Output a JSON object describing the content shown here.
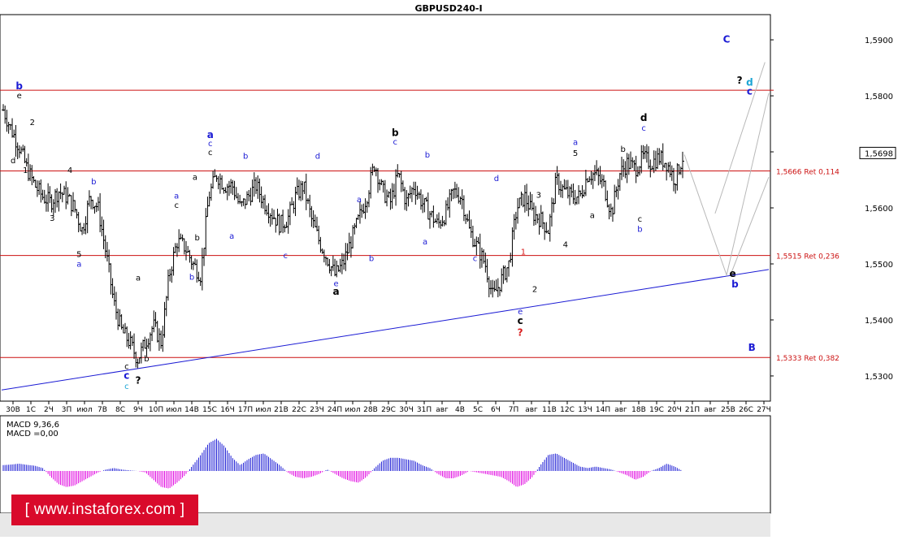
{
  "title": "GBPUSD240-I",
  "chart_data": {
    "type": "ohlc-bars",
    "symbol": "GBPUSD240-I",
    "ylim": [
      1.5255,
      1.5945
    ],
    "y_ticks": [
      "1,5900",
      "1,5800",
      "1,5700",
      "1,5600",
      "1,5500",
      "1,5400",
      "1,5300"
    ],
    "last_price": "1,5698",
    "x_ticks": [
      "30B",
      "1C",
      "2Ч",
      "3П",
      "июл",
      "7B",
      "8C",
      "9Ч",
      "10П",
      "июл",
      "14B",
      "15C",
      "16Ч",
      "17П",
      "июл",
      "21B",
      "22C",
      "23Ч",
      "24П",
      "июл",
      "28B",
      "29C",
      "30Ч",
      "31П",
      "авг",
      "4B",
      "5C",
      "6Ч",
      "7П",
      "авг",
      "11B",
      "12C",
      "13Ч",
      "14П",
      "авг",
      "18B",
      "19C",
      "20Ч",
      "21П",
      "авг",
      "25B",
      "26C",
      "27Ч"
    ],
    "price_path": [
      1.5775,
      1.574,
      1.571,
      1.567,
      1.564,
      1.562,
      1.561,
      1.563,
      1.562,
      1.56,
      1.556,
      1.562,
      1.56,
      1.552,
      1.543,
      1.538,
      1.536,
      1.533,
      1.536,
      1.539,
      1.536,
      1.548,
      1.554,
      1.553,
      1.55,
      1.548,
      1.562,
      1.566,
      1.564,
      1.564,
      1.56,
      1.562,
      1.564,
      1.561,
      1.559,
      1.557,
      1.558,
      1.562,
      1.564,
      1.558,
      1.554,
      1.551,
      1.548,
      1.55,
      1.554,
      1.558,
      1.562,
      1.568,
      1.563,
      1.561,
      1.566,
      1.561,
      1.564,
      1.561,
      1.559,
      1.557,
      1.559,
      1.563,
      1.562,
      1.556,
      1.553,
      1.55,
      1.544,
      1.547,
      1.55,
      1.56,
      1.562,
      1.559,
      1.558,
      1.556,
      1.565,
      1.563,
      1.562,
      1.562,
      1.566,
      1.566,
      1.564,
      1.559,
      1.566,
      1.568,
      1.567,
      1.569,
      1.568,
      1.569,
      1.568,
      1.565,
      1.569
    ],
    "levels": [
      {
        "label": "1,5666 Ret 0,114",
        "value": 1.5666
      },
      {
        "label": "1,5515 Ret 0,236",
        "value": 1.5515
      },
      {
        "label": "1,5333 Ret 0,382",
        "value": 1.5333
      }
    ],
    "top_line": 1.581,
    "trendline": {
      "from": {
        "x": 0,
        "y": 1.5275
      },
      "to": {
        "x": 1,
        "y": 1.549
      }
    },
    "projections": [
      {
        "points": [
          [
            0.89,
            1.5695
          ],
          [
            0.945,
            1.548
          ],
          [
            1.0,
            1.5805
          ]
        ]
      },
      {
        "points": [
          [
            0.93,
            1.559
          ],
          [
            0.995,
            1.586
          ]
        ]
      },
      {
        "points": [
          [
            0.95,
            1.548
          ],
          [
            1.0,
            1.5655
          ]
        ]
      }
    ],
    "wave_labels": [
      {
        "text": "C",
        "x": 0.945,
        "y": 1.5895,
        "color": "#1b1bd4",
        "bold": true
      },
      {
        "text": "?",
        "x": 0.962,
        "y": 1.5822,
        "color": "#000000",
        "bold": true
      },
      {
        "text": "d",
        "x": 0.975,
        "y": 1.5818,
        "color": "#1ba5d4",
        "bold": true
      },
      {
        "text": "c",
        "x": 0.975,
        "y": 1.5802,
        "color": "#1b1bd4",
        "bold": true
      },
      {
        "text": "b",
        "x": 0.023,
        "y": 1.5812,
        "color": "#1b1bd4",
        "bold": true
      },
      {
        "text": "e",
        "x": 0.023,
        "y": 1.5796,
        "color": "#000000"
      },
      {
        "text": "2",
        "x": 0.04,
        "y": 1.5748,
        "color": "#000000"
      },
      {
        "text": "d",
        "x": 0.015,
        "y": 1.568,
        "color": "#000000"
      },
      {
        "text": "1",
        "x": 0.031,
        "y": 1.5662,
        "color": "#000000"
      },
      {
        "text": "4",
        "x": 0.089,
        "y": 1.5662,
        "color": "#000000"
      },
      {
        "text": "3",
        "x": 0.066,
        "y": 1.5577,
        "color": "#000000"
      },
      {
        "text": "5",
        "x": 0.101,
        "y": 1.5512,
        "color": "#000000"
      },
      {
        "text": "a",
        "x": 0.101,
        "y": 1.5495,
        "color": "#1b1bd4"
      },
      {
        "text": "b",
        "x": 0.12,
        "y": 1.5642,
        "color": "#1b1bd4"
      },
      {
        "text": "a",
        "x": 0.178,
        "y": 1.547,
        "color": "#000000"
      },
      {
        "text": "c",
        "x": 0.163,
        "y": 1.5312,
        "color": "#000000"
      },
      {
        "text": "c",
        "x": 0.163,
        "y": 1.5295,
        "color": "#1b1bd4",
        "bold": true
      },
      {
        "text": "c",
        "x": 0.163,
        "y": 1.5277,
        "color": "#1ba5d4"
      },
      {
        "text": "b",
        "x": 0.189,
        "y": 1.5326,
        "color": "#000000"
      },
      {
        "text": "?",
        "x": 0.178,
        "y": 1.5286,
        "color": "#000000",
        "bold": true
      },
      {
        "text": "b",
        "x": 0.248,
        "y": 1.5472,
        "color": "#1b1bd4"
      },
      {
        "text": "b",
        "x": 0.255,
        "y": 1.5542,
        "color": "#000000"
      },
      {
        "text": "c",
        "x": 0.228,
        "y": 1.56,
        "color": "#000000"
      },
      {
        "text": "a",
        "x": 0.228,
        "y": 1.5617,
        "color": "#1b1bd4"
      },
      {
        "text": "a",
        "x": 0.252,
        "y": 1.565,
        "color": "#000000"
      },
      {
        "text": "a",
        "x": 0.272,
        "y": 1.5725,
        "color": "#1b1bd4",
        "bold": true
      },
      {
        "text": "c",
        "x": 0.272,
        "y": 1.571,
        "color": "#1b1bd4"
      },
      {
        "text": "c",
        "x": 0.272,
        "y": 1.5694,
        "color": "#000000"
      },
      {
        "text": "b",
        "x": 0.318,
        "y": 1.5688,
        "color": "#1b1bd4"
      },
      {
        "text": "a",
        "x": 0.3,
        "y": 1.5545,
        "color": "#1b1bd4"
      },
      {
        "text": "d",
        "x": 0.412,
        "y": 1.5688,
        "color": "#1b1bd4"
      },
      {
        "text": "c",
        "x": 0.37,
        "y": 1.551,
        "color": "#1b1bd4"
      },
      {
        "text": "e",
        "x": 0.436,
        "y": 1.546,
        "color": "#1b1bd4"
      },
      {
        "text": "a",
        "x": 0.436,
        "y": 1.5445,
        "color": "#000000",
        "bold": true
      },
      {
        "text": "a",
        "x": 0.466,
        "y": 1.561,
        "color": "#1b1bd4"
      },
      {
        "text": "b",
        "x": 0.482,
        "y": 1.5505,
        "color": "#1b1bd4"
      },
      {
        "text": "b",
        "x": 0.513,
        "y": 1.5728,
        "color": "#000000",
        "bold": true
      },
      {
        "text": "c",
        "x": 0.513,
        "y": 1.5713,
        "color": "#1b1bd4"
      },
      {
        "text": "b",
        "x": 0.555,
        "y": 1.569,
        "color": "#1b1bd4"
      },
      {
        "text": "a",
        "x": 0.552,
        "y": 1.5535,
        "color": "#1b1bd4"
      },
      {
        "text": "c",
        "x": 0.617,
        "y": 1.5505,
        "color": "#1b1bd4"
      },
      {
        "text": "d",
        "x": 0.645,
        "y": 1.5648,
        "color": "#1b1bd4"
      },
      {
        "text": "1",
        "x": 0.68,
        "y": 1.5517,
        "color": "#d81b1b"
      },
      {
        "text": "e",
        "x": 0.676,
        "y": 1.541,
        "color": "#1b1bd4"
      },
      {
        "text": "c",
        "x": 0.676,
        "y": 1.5393,
        "color": "#000000",
        "bold": true
      },
      {
        "text": "?",
        "x": 0.676,
        "y": 1.5372,
        "color": "#d81b1b",
        "bold": true
      },
      {
        "text": "2",
        "x": 0.695,
        "y": 1.545,
        "color": "#000000"
      },
      {
        "text": "3",
        "x": 0.7,
        "y": 1.5618,
        "color": "#000000"
      },
      {
        "text": "4",
        "x": 0.735,
        "y": 1.553,
        "color": "#000000"
      },
      {
        "text": "a",
        "x": 0.748,
        "y": 1.5712,
        "color": "#1b1bd4"
      },
      {
        "text": "5",
        "x": 0.748,
        "y": 1.5693,
        "color": "#000000"
      },
      {
        "text": "a",
        "x": 0.77,
        "y": 1.5582,
        "color": "#000000"
      },
      {
        "text": "b",
        "x": 0.81,
        "y": 1.57,
        "color": "#000000"
      },
      {
        "text": "d",
        "x": 0.837,
        "y": 1.5755,
        "color": "#000000",
        "bold": true
      },
      {
        "text": "c",
        "x": 0.837,
        "y": 1.5738,
        "color": "#1b1bd4"
      },
      {
        "text": "c",
        "x": 0.832,
        "y": 1.5575,
        "color": "#000000"
      },
      {
        "text": "b",
        "x": 0.832,
        "y": 1.5557,
        "color": "#1b1bd4"
      },
      {
        "text": "e",
        "x": 0.953,
        "y": 1.5477,
        "color": "#000000",
        "bold": true
      },
      {
        "text": "b",
        "x": 0.956,
        "y": 1.5458,
        "color": "#1b1bd4",
        "bold": true
      },
      {
        "text": "B",
        "x": 0.978,
        "y": 1.5345,
        "color": "#1b1bd4",
        "bold": true
      }
    ],
    "macd": {
      "label_main": "MACD 9,36,6",
      "label_signal": "MACD =0,00",
      "histogram": [
        0.2,
        0.22,
        0.25,
        0.21,
        0.18,
        0.1,
        -0.2,
        -0.45,
        -0.55,
        -0.5,
        -0.35,
        -0.2,
        -0.05,
        0.05,
        0.1,
        0.05,
        0.02,
        0.0,
        -0.05,
        -0.3,
        -0.55,
        -0.6,
        -0.4,
        -0.15,
        0.2,
        0.55,
        0.95,
        1.1,
        0.85,
        0.45,
        0.2,
        0.4,
        0.55,
        0.6,
        0.4,
        0.2,
        -0.05,
        -0.2,
        -0.25,
        -0.2,
        -0.1,
        0.05,
        -0.1,
        -0.25,
        -0.35,
        -0.4,
        -0.2,
        0.1,
        0.35,
        0.45,
        0.45,
        0.4,
        0.35,
        0.2,
        0.1,
        -0.1,
        -0.25,
        -0.25,
        -0.15,
        0.0,
        -0.05,
        -0.1,
        -0.15,
        -0.2,
        -0.35,
        -0.55,
        -0.45,
        -0.2,
        0.2,
        0.55,
        0.6,
        0.45,
        0.3,
        0.15,
        0.1,
        0.15,
        0.1,
        0.05,
        -0.05,
        -0.15,
        -0.3,
        -0.2,
        0.0,
        0.1,
        0.25,
        0.15,
        0.0
      ],
      "color_positive": "#1b1bd4",
      "color_negative": "#e000e0"
    },
    "colors": {
      "bars": "#000000",
      "levels": "#cc1111",
      "trendline": "#1b1bd4",
      "projection": "#b8b8b8"
    }
  },
  "watermark": "[ www.instaforex.com ]"
}
